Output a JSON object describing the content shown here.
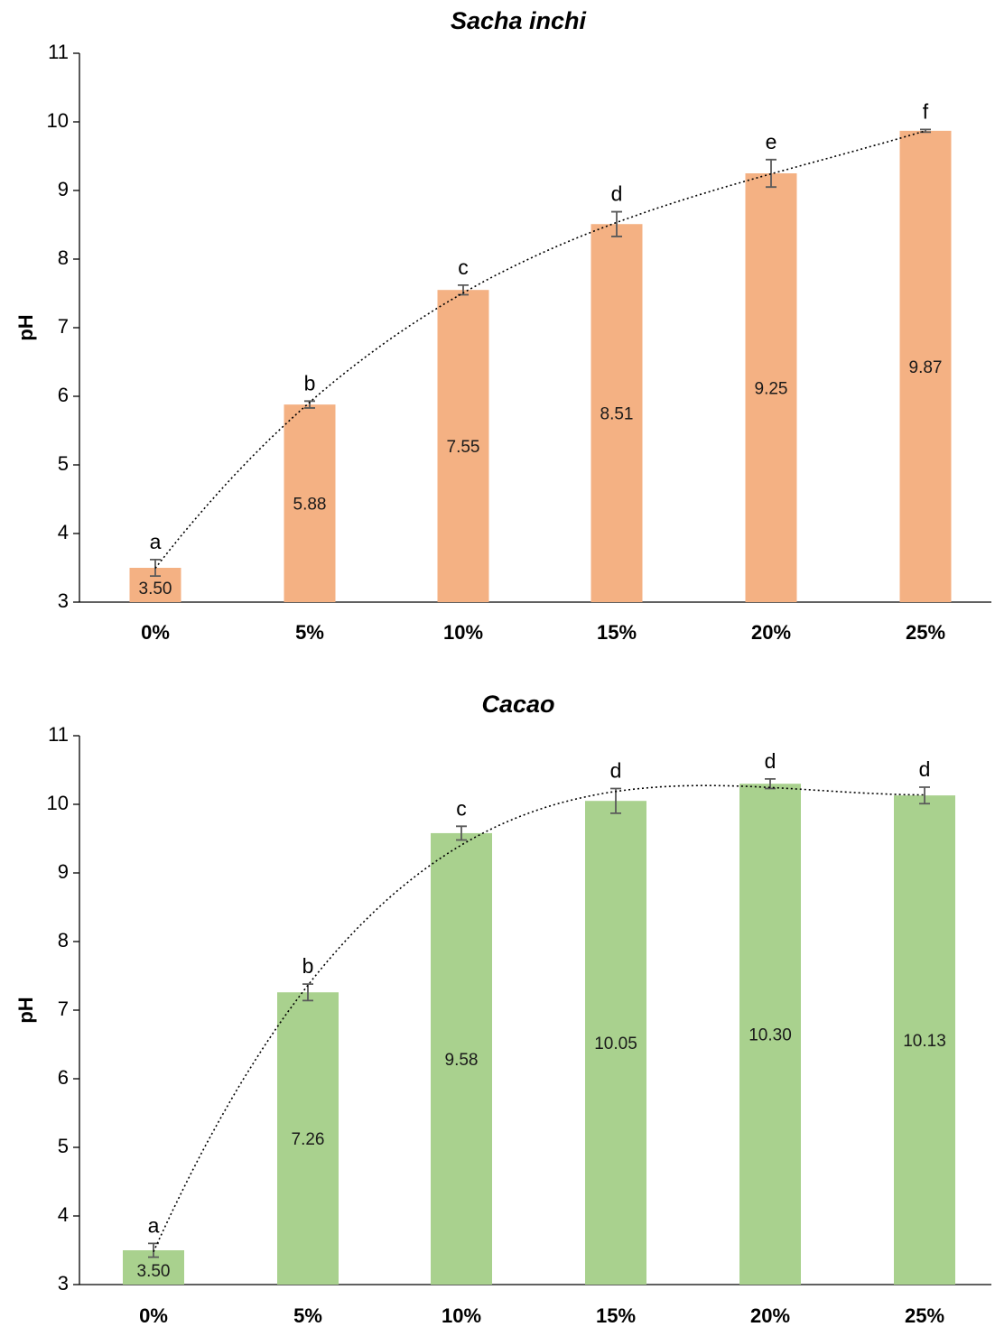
{
  "chart_data": [
    {
      "type": "bar",
      "title": "Sacha inchi",
      "xlabel": "",
      "ylabel": "pH",
      "ylim": [
        3,
        11
      ],
      "yticks": [
        "3",
        "4",
        "5",
        "6",
        "7",
        "8",
        "9",
        "10",
        "11"
      ],
      "categories": [
        "0%",
        "5%",
        "10%",
        "15%",
        "20%",
        "25%"
      ],
      "values": [
        3.5,
        5.88,
        7.55,
        8.51,
        9.25,
        9.87
      ],
      "value_labels": [
        "3.50",
        "5.88",
        "7.55",
        "8.51",
        "9.25",
        "9.87"
      ],
      "errors": [
        0.12,
        0.05,
        0.07,
        0.18,
        0.2,
        0.02
      ],
      "significance_letters": [
        "a",
        "b",
        "c",
        "d",
        "e",
        "f"
      ],
      "trendline": "polynomial",
      "bar_color": "#F4B183",
      "grid": false
    },
    {
      "type": "bar",
      "title": "Cacao",
      "xlabel": "",
      "ylabel": "pH",
      "ylim": [
        3,
        11
      ],
      "yticks": [
        "3",
        "4",
        "5",
        "6",
        "7",
        "8",
        "9",
        "10",
        "11"
      ],
      "categories": [
        "0%",
        "5%",
        "10%",
        "15%",
        "20%",
        "25%"
      ],
      "values": [
        3.5,
        7.26,
        9.58,
        10.05,
        10.3,
        10.13
      ],
      "value_labels": [
        "3.50",
        "7.26",
        "9.58",
        "10.05",
        "10.30",
        "10.13"
      ],
      "errors": [
        0.1,
        0.12,
        0.1,
        0.18,
        0.07,
        0.12
      ],
      "significance_letters": [
        "a",
        "b",
        "c",
        "d",
        "d",
        "d"
      ],
      "trendline": "polynomial",
      "bar_color": "#A9D18E",
      "grid": false
    }
  ]
}
